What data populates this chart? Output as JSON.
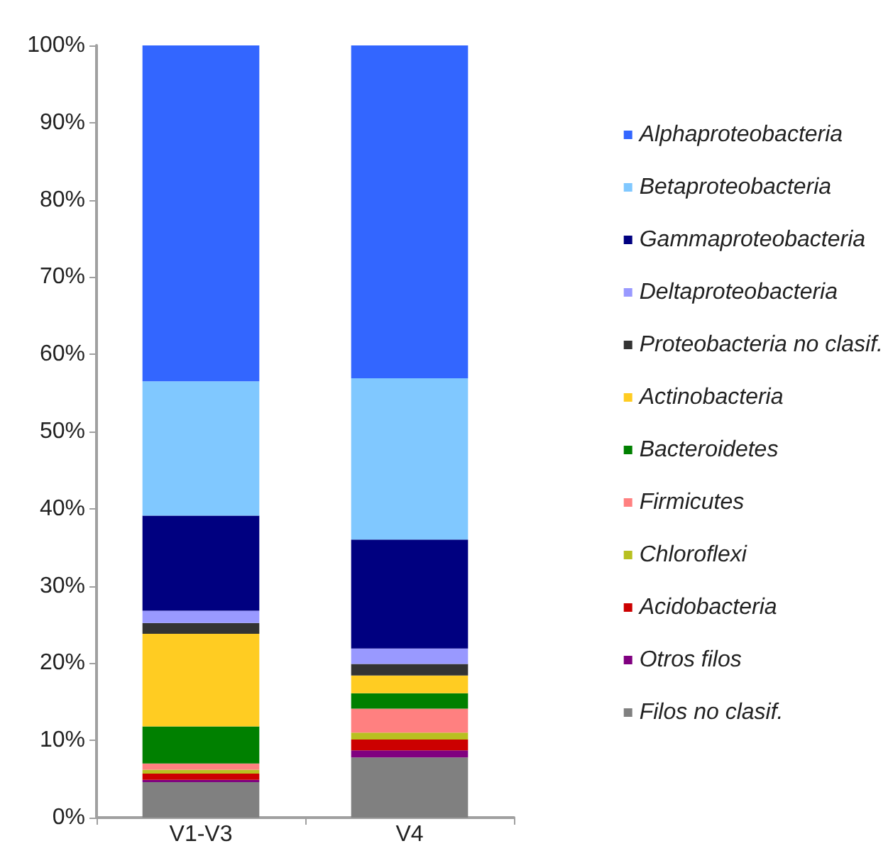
{
  "chart_data": {
    "type": "bar",
    "stacked": true,
    "categories": [
      "V1-V3",
      "V4"
    ],
    "series": [
      {
        "name": "Filos no clasif.",
        "color": "#808080",
        "values": [
          4.6,
          7.8
        ]
      },
      {
        "name": "Otros filos",
        "color": "#800080",
        "values": [
          0.3,
          0.9
        ]
      },
      {
        "name": "Acidobacteria",
        "color": "#cc0000",
        "values": [
          0.8,
          1.4
        ]
      },
      {
        "name": "Chloroflexi",
        "color": "#b8c020",
        "values": [
          0.5,
          0.9
        ]
      },
      {
        "name": "Firmicutes",
        "color": "#ff8080",
        "values": [
          0.8,
          3.1
        ]
      },
      {
        "name": "Bacteroidetes",
        "color": "#008000",
        "values": [
          4.8,
          2.0
        ]
      },
      {
        "name": "Actinobacteria",
        "color": "#ffcc22",
        "values": [
          12.0,
          2.3
        ]
      },
      {
        "name": "Proteobacteria no clasif.",
        "color": "#333333",
        "values": [
          1.4,
          1.5
        ]
      },
      {
        "name": "Deltaproteobacteria",
        "color": "#9999ff",
        "values": [
          1.6,
          2.0
        ]
      },
      {
        "name": "Gammaproteobacteria",
        "color": "#000080",
        "values": [
          12.3,
          14.1
        ]
      },
      {
        "name": "Betaproteobacteria",
        "color": "#80c8ff",
        "values": [
          17.4,
          20.9
        ]
      },
      {
        "name": "Alphaproteobacteria",
        "color": "#3366ff",
        "values": [
          43.5,
          43.1
        ]
      }
    ],
    "ylim": [
      0,
      100
    ],
    "yticks": [
      {
        "value": 0,
        "label": "0%"
      },
      {
        "value": 10,
        "label": "10%"
      },
      {
        "value": 20,
        "label": "20%"
      },
      {
        "value": 30,
        "label": "30%"
      },
      {
        "value": 40,
        "label": "40%"
      },
      {
        "value": 50,
        "label": "50%"
      },
      {
        "value": 60,
        "label": "60%"
      },
      {
        "value": 70,
        "label": "70%"
      },
      {
        "value": 80,
        "label": "80%"
      },
      {
        "value": 90,
        "label": "90%"
      },
      {
        "value": 100,
        "label": "100%"
      }
    ],
    "grid": false,
    "legend": "right"
  }
}
